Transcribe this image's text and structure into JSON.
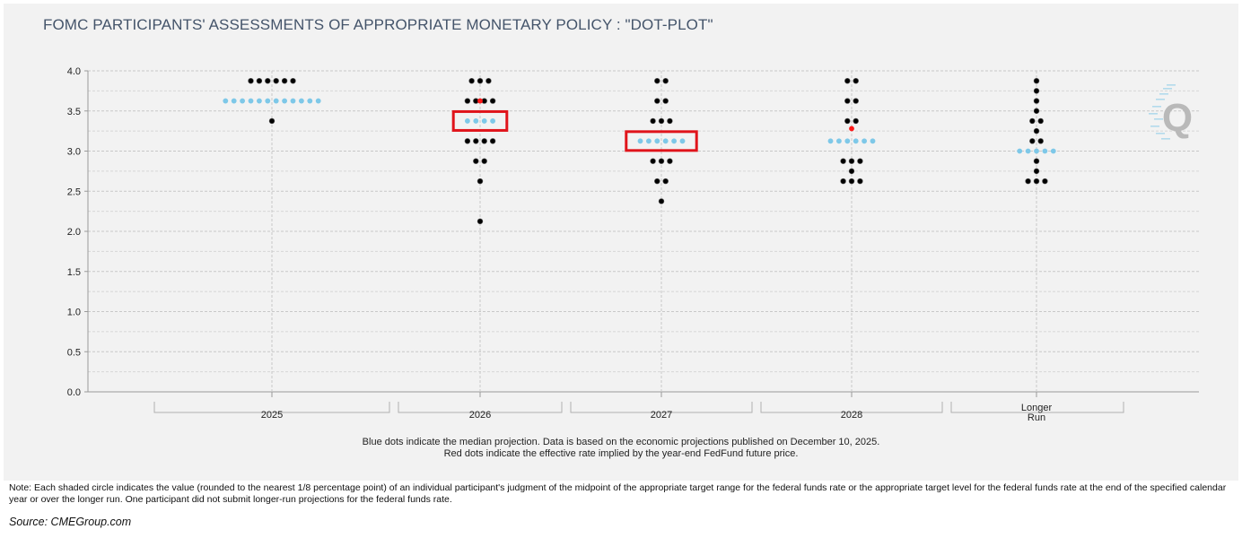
{
  "title": "FOMC PARTICIPANTS' ASSESSMENTS OF APPROPRIATE MONETARY POLICY : \"DOT-PLOT\"",
  "chart_data": {
    "type": "scatter",
    "ylim": [
      0,
      4
    ],
    "y_ticks": [
      "0.0",
      "0.5",
      "1.0",
      "1.5",
      "2.0",
      "2.5",
      "3.0",
      "3.5",
      "4.0"
    ],
    "categories": [
      "2025",
      "2026",
      "2027",
      "2028",
      "Longer\nRun"
    ],
    "grid": true,
    "colors": {
      "participant": "#000000",
      "median": "#7ec8e8",
      "future_implied": "#ff1a1a",
      "highlight": "#e0141b"
    },
    "columns": [
      {
        "label": "2025",
        "participants": [
          {
            "y": 3.875,
            "count": 6
          },
          {
            "y": 3.375,
            "count": 1
          }
        ],
        "median": {
          "y": 3.625,
          "count": 12
        },
        "futures": []
      },
      {
        "label": "2026",
        "participants": [
          {
            "y": 3.875,
            "count": 3
          },
          {
            "y": 3.625,
            "count": 4
          },
          {
            "y": 3.125,
            "count": 4
          },
          {
            "y": 2.875,
            "count": 2
          },
          {
            "y": 2.625,
            "count": 1
          },
          {
            "y": 2.125,
            "count": 1
          }
        ],
        "median": {
          "y": 3.375,
          "count": 4
        },
        "futures": [
          3.625
        ],
        "highlighted": 3.375
      },
      {
        "label": "2027",
        "participants": [
          {
            "y": 3.875,
            "count": 2
          },
          {
            "y": 3.625,
            "count": 2
          },
          {
            "y": 3.375,
            "count": 3
          },
          {
            "y": 2.875,
            "count": 3
          },
          {
            "y": 2.625,
            "count": 2
          },
          {
            "y": 2.375,
            "count": 1
          }
        ],
        "median": {
          "y": 3.125,
          "count": 6
        },
        "futures": [],
        "highlighted": 3.125
      },
      {
        "label": "2028",
        "participants": [
          {
            "y": 3.875,
            "count": 2
          },
          {
            "y": 3.625,
            "count": 2
          },
          {
            "y": 3.375,
            "count": 2
          },
          {
            "y": 2.875,
            "count": 3
          },
          {
            "y": 2.75,
            "count": 1
          },
          {
            "y": 2.625,
            "count": 3
          }
        ],
        "median": {
          "y": 3.125,
          "count": 6
        },
        "futures": [
          3.28
        ],
        "highlighted": null
      },
      {
        "label": "Longer\nRun",
        "participants": [
          {
            "y": 3.875,
            "count": 1
          },
          {
            "y": 3.75,
            "count": 1
          },
          {
            "y": 3.625,
            "count": 1
          },
          {
            "y": 3.5,
            "count": 1
          },
          {
            "y": 3.375,
            "count": 2
          },
          {
            "y": 3.25,
            "count": 1
          },
          {
            "y": 3.125,
            "count": 2
          },
          {
            "y": 2.875,
            "count": 1
          },
          {
            "y": 2.75,
            "count": 1
          },
          {
            "y": 2.625,
            "count": 3
          }
        ],
        "median": {
          "y": 3.0,
          "count": 5
        },
        "futures": [],
        "highlighted": null
      }
    ]
  },
  "caption_line1": "Blue dots indicate the median projection. Data is based on the economic projections published on December 10, 2025.",
  "caption_line2": "Red dots indicate the effective rate implied by the year-end FedFund future price.",
  "note": "Note: Each shaded circle indicates the value (rounded to the nearest 1/8 percentage point) of an individual participant's judgment of the midpoint of the appropriate target range for the federal funds rate or the appropriate target level for the federal funds rate at the end of the specified calendar year or over the longer run. One participant did not submit longer-run projections for the federal funds rate.",
  "source": "Source:  CMEGroup.com",
  "watermark_letter": "Q"
}
